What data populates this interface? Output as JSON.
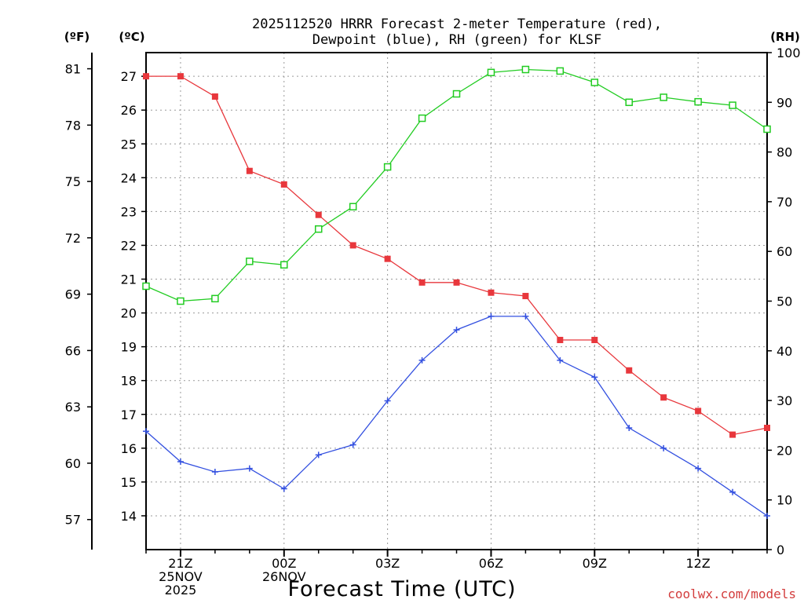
{
  "chart_data": {
    "type": "line",
    "title_line1": "2025112520 HRRR Forecast 2-meter Temperature (red),",
    "title_line2": "Dewpoint (blue), RH (green) for KLSF",
    "xlabel": "Forecast Time (UTC)",
    "watermark": "coolwx.com/models",
    "unit_f": "(ºF)",
    "unit_c": "(ºC)",
    "unit_rh": "(RH)",
    "hours": [
      0,
      1,
      2,
      3,
      4,
      5,
      6,
      7,
      8,
      9,
      10,
      11,
      12,
      13,
      14,
      15,
      16,
      17,
      18
    ],
    "x_ticks": [
      {
        "hour": 1,
        "lines": [
          "21Z",
          "25NOV",
          "2025"
        ]
      },
      {
        "hour": 4,
        "lines": [
          "00Z",
          "26NOV"
        ]
      },
      {
        "hour": 7,
        "lines": [
          "03Z"
        ]
      },
      {
        "hour": 10,
        "lines": [
          "06Z"
        ]
      },
      {
        "hour": 13,
        "lines": [
          "09Z"
        ]
      },
      {
        "hour": 16,
        "lines": [
          "12Z"
        ]
      }
    ],
    "c_axis": {
      "range": [
        13,
        27.7
      ],
      "ticks": [
        14,
        15,
        16,
        17,
        18,
        19,
        20,
        21,
        22,
        23,
        24,
        25,
        26,
        27
      ]
    },
    "f_axis": {
      "ticks": [
        57,
        60,
        63,
        66,
        69,
        72,
        75,
        78,
        81
      ]
    },
    "rh_axis": {
      "range": [
        0,
        100
      ],
      "ticks": [
        0,
        10,
        20,
        30,
        40,
        50,
        60,
        70,
        80,
        90,
        100
      ]
    },
    "series": [
      {
        "name": "Temperature",
        "unit": "C",
        "color": "#e8373c",
        "marker": "filled-square",
        "values": [
          27.0,
          27.0,
          26.4,
          24.2,
          23.8,
          22.9,
          22.0,
          21.6,
          20.9,
          20.9,
          20.6,
          20.5,
          19.2,
          19.2,
          18.3,
          17.5,
          17.1,
          16.4,
          16.6
        ]
      },
      {
        "name": "Dewpoint",
        "unit": "C",
        "color": "#3350e0",
        "marker": "plus",
        "values": [
          16.5,
          15.6,
          15.3,
          15.4,
          14.8,
          15.8,
          16.1,
          17.4,
          18.6,
          19.5,
          19.9,
          19.9,
          18.6,
          18.1,
          16.6,
          16.0,
          15.4,
          14.7,
          14.0
        ]
      },
      {
        "name": "RH",
        "unit": "%",
        "color": "#22cc22",
        "marker": "open-square",
        "values": [
          53,
          50,
          50.5,
          58,
          57.3,
          64.5,
          69,
          77,
          86.8,
          91.7,
          96,
          96.6,
          96.3,
          94,
          90,
          91,
          90.1,
          89.4,
          84.6
        ]
      }
    ]
  }
}
